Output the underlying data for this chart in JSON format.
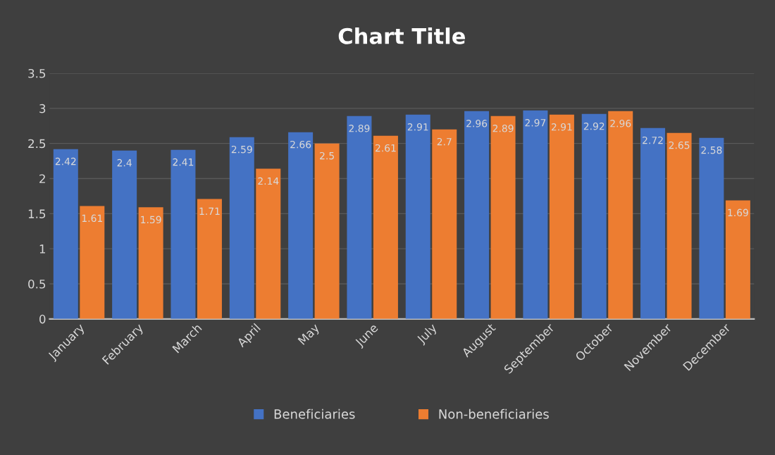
{
  "chart_data": {
    "type": "bar",
    "title": "Chart Title",
    "categories": [
      "January",
      "February",
      "March",
      "April",
      "May",
      "June",
      "July",
      "August",
      "September",
      "October",
      "November",
      "December"
    ],
    "series": [
      {
        "name": "Beneficiaries",
        "color": "#4472c4",
        "values": [
          2.42,
          2.4,
          2.41,
          2.59,
          2.66,
          2.89,
          2.91,
          2.96,
          2.97,
          2.92,
          2.72,
          2.58
        ]
      },
      {
        "name": "Non-beneficiaries",
        "color": "#ed7d31",
        "values": [
          1.61,
          1.59,
          1.71,
          2.14,
          2.5,
          2.61,
          2.7,
          2.89,
          2.91,
          2.96,
          2.65,
          1.69
        ]
      }
    ],
    "ylim": [
      0,
      3.5
    ],
    "yticks": [
      0,
      0.5,
      1,
      1.5,
      2,
      2.5,
      3,
      3.5
    ],
    "grid": "y",
    "legend": "bottom",
    "data_labels": true
  }
}
